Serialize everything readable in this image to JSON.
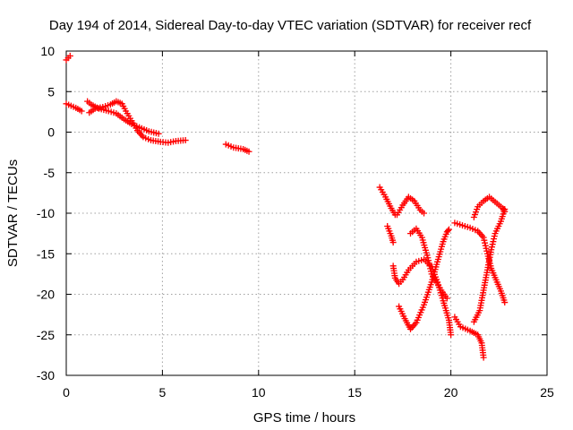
{
  "chart_data": {
    "type": "scatter",
    "title": "Day 194 of 2014, Sidereal Day-to-day VTEC variation (SDTVAR) for receiver recf",
    "xlabel": "GPS time / hours",
    "ylabel": "SDTVAR / TECUs",
    "xlim": [
      0,
      25
    ],
    "ylim": [
      -30,
      10
    ],
    "xticks": [
      0,
      5,
      10,
      15,
      20,
      25
    ],
    "xtick_labels": [
      "0",
      "5",
      "10",
      "15",
      "20",
      "25"
    ],
    "yticks": [
      -30,
      -25,
      -20,
      -15,
      -10,
      -5,
      0,
      5,
      10
    ],
    "ytick_labels": [
      "-30",
      "-25",
      "-20",
      "-15",
      "-10",
      "-5",
      "0",
      "5",
      "10"
    ],
    "grid": true,
    "marker": "+",
    "color": "#ff0000",
    "series": [
      {
        "name": "s1",
        "points": [
          [
            0.0,
            8.9
          ],
          [
            0.2,
            9.4
          ]
        ]
      },
      {
        "name": "s2",
        "points": [
          [
            0.0,
            3.5
          ],
          [
            0.5,
            3.0
          ],
          [
            0.8,
            2.6
          ]
        ]
      },
      {
        "name": "s3",
        "points": [
          [
            1.1,
            3.8
          ],
          [
            1.3,
            3.4
          ],
          [
            1.7,
            2.9
          ],
          [
            2.2,
            2.6
          ],
          [
            2.6,
            2.3
          ],
          [
            3.0,
            1.6
          ],
          [
            3.4,
            1.0
          ],
          [
            3.8,
            0.6
          ],
          [
            4.3,
            0.1
          ],
          [
            4.8,
            -0.2
          ]
        ]
      },
      {
        "name": "s4",
        "points": [
          [
            1.2,
            2.4
          ],
          [
            1.5,
            2.9
          ],
          [
            1.9,
            3.1
          ],
          [
            2.3,
            3.4
          ],
          [
            2.6,
            3.8
          ],
          [
            2.9,
            3.5
          ],
          [
            3.1,
            2.6
          ],
          [
            3.4,
            1.4
          ],
          [
            3.7,
            0.2
          ],
          [
            4.0,
            -0.6
          ],
          [
            4.4,
            -1.0
          ],
          [
            4.9,
            -1.2
          ],
          [
            5.3,
            -1.3
          ],
          [
            5.7,
            -1.1
          ],
          [
            6.2,
            -1.0
          ]
        ]
      },
      {
        "name": "s5",
        "points": [
          [
            8.3,
            -1.5
          ],
          [
            8.7,
            -1.9
          ],
          [
            9.2,
            -2.1
          ],
          [
            9.5,
            -2.4
          ]
        ]
      },
      {
        "name": "s6",
        "points": [
          [
            16.3,
            -6.8
          ],
          [
            16.6,
            -8.0
          ],
          [
            16.9,
            -9.4
          ],
          [
            17.1,
            -10.2
          ]
        ]
      },
      {
        "name": "s7",
        "points": [
          [
            16.7,
            -11.6
          ],
          [
            16.9,
            -12.8
          ],
          [
            17.0,
            -13.6
          ]
        ]
      },
      {
        "name": "s8",
        "points": [
          [
            17.2,
            -10.2
          ],
          [
            17.5,
            -9.0
          ],
          [
            17.8,
            -8.0
          ],
          [
            18.1,
            -8.5
          ],
          [
            18.4,
            -9.6
          ],
          [
            18.6,
            -10.0
          ]
        ]
      },
      {
        "name": "s9",
        "points": [
          [
            17.0,
            -16.5
          ],
          [
            17.1,
            -18.0
          ],
          [
            17.3,
            -18.7
          ],
          [
            17.5,
            -18.2
          ],
          [
            17.8,
            -17.0
          ],
          [
            18.2,
            -16.0
          ],
          [
            18.6,
            -15.7
          ],
          [
            19.0,
            -16.6
          ],
          [
            19.3,
            -18.5
          ],
          [
            19.6,
            -20.8
          ],
          [
            19.9,
            -23.2
          ],
          [
            20.0,
            -25.0
          ]
        ]
      },
      {
        "name": "s10",
        "points": [
          [
            17.9,
            -12.5
          ],
          [
            18.2,
            -11.9
          ],
          [
            18.5,
            -13.0
          ],
          [
            18.8,
            -15.5
          ],
          [
            19.0,
            -17.5
          ],
          [
            19.2,
            -18.3
          ],
          [
            19.5,
            -19.5
          ],
          [
            19.8,
            -20.5
          ]
        ]
      },
      {
        "name": "s11",
        "points": [
          [
            17.3,
            -21.5
          ],
          [
            17.6,
            -23.0
          ],
          [
            17.9,
            -24.3
          ],
          [
            18.2,
            -23.5
          ],
          [
            18.6,
            -21.3
          ],
          [
            19.0,
            -18.5
          ],
          [
            19.3,
            -16.0
          ],
          [
            19.6,
            -13.5
          ],
          [
            19.8,
            -12.3
          ],
          [
            19.9,
            -12.0
          ]
        ]
      },
      {
        "name": "s12",
        "points": [
          [
            20.2,
            -11.2
          ],
          [
            20.6,
            -11.5
          ],
          [
            21.0,
            -11.8
          ],
          [
            21.4,
            -12.2
          ],
          [
            21.7,
            -13.0
          ],
          [
            21.9,
            -15.0
          ],
          [
            22.1,
            -16.8
          ],
          [
            22.4,
            -18.5
          ],
          [
            22.6,
            -19.6
          ],
          [
            22.8,
            -21.0
          ]
        ]
      },
      {
        "name": "s13",
        "points": [
          [
            20.2,
            -22.8
          ],
          [
            20.5,
            -24.0
          ],
          [
            21.0,
            -24.5
          ],
          [
            21.4,
            -25.0
          ],
          [
            21.6,
            -26.0
          ],
          [
            21.7,
            -27.8
          ]
        ]
      },
      {
        "name": "s14",
        "points": [
          [
            21.2,
            -23.4
          ],
          [
            21.5,
            -22.0
          ],
          [
            21.7,
            -19.5
          ],
          [
            21.9,
            -17.0
          ],
          [
            22.1,
            -14.5
          ],
          [
            22.3,
            -12.5
          ],
          [
            22.6,
            -11.0
          ],
          [
            22.8,
            -9.5
          ]
        ]
      },
      {
        "name": "s15",
        "points": [
          [
            21.2,
            -10.5
          ],
          [
            21.4,
            -9.2
          ],
          [
            21.7,
            -8.5
          ],
          [
            22.0,
            -8.0
          ],
          [
            22.3,
            -8.6
          ],
          [
            22.7,
            -9.4
          ],
          [
            22.8,
            -9.8
          ]
        ]
      }
    ]
  }
}
